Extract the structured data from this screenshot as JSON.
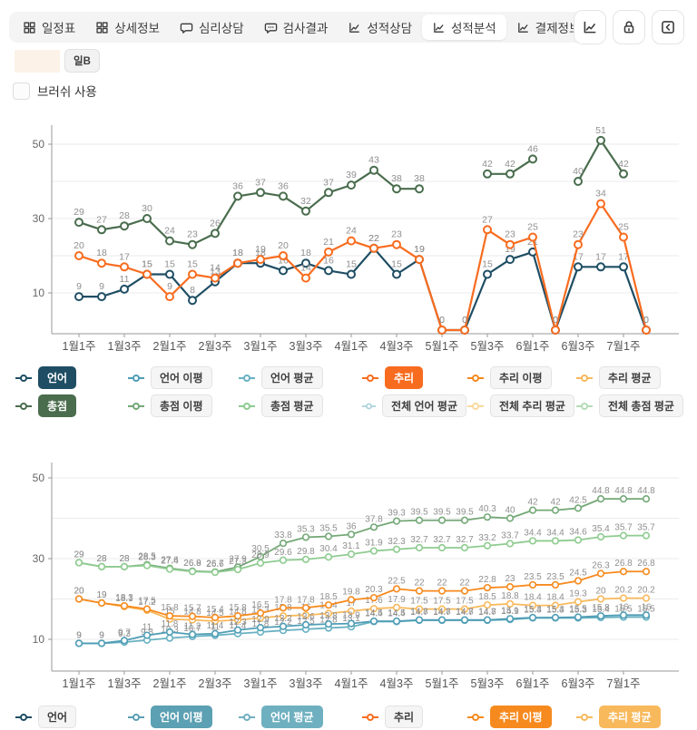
{
  "tabbar": {
    "tabs": [
      {
        "key": "schedule",
        "label": "일정표",
        "icon": "grid",
        "active": false
      },
      {
        "key": "details",
        "label": "상세정보",
        "icon": "grid",
        "active": false
      },
      {
        "key": "psych-counseling",
        "label": "심리상담",
        "icon": "chat",
        "active": false
      },
      {
        "key": "test-results",
        "label": "검사결과",
        "icon": "chat-dots",
        "active": false
      },
      {
        "key": "grade-counseling",
        "label": "성적상담",
        "icon": "chart",
        "active": false
      },
      {
        "key": "grade-analysis",
        "label": "성적분석",
        "icon": "chart",
        "active": true
      },
      {
        "key": "payment",
        "label": "결제정보",
        "icon": "chart",
        "active": false
      }
    ]
  },
  "toolbar": {
    "buttons": [
      {
        "key": "chart-view",
        "icon": "chart"
      },
      {
        "key": "lock",
        "icon": "lock"
      },
      {
        "key": "collapse",
        "icon": "prev"
      }
    ]
  },
  "student_row": {
    "badge_label": "일B"
  },
  "brush": {
    "label": "브러쉬 사용",
    "checked": false
  },
  "colors": {
    "navy": "#1f4e64",
    "orange": "#f86c1f",
    "green": "#4a6d4e",
    "teal": "#4f9db5",
    "teal_light": "#68b1c2",
    "orange2": "#f68a1e",
    "orange_light": "#f8b95c",
    "green2": "#74a877",
    "green_light": "#8ecb90",
    "label_gray": "#909090",
    "axis_gray": "#999999",
    "grid_gray": "#ebebeb",
    "tick_text": "#555555"
  },
  "x_tick_labels": [
    "1월1주",
    "1월3주",
    "2월1주",
    "2월3주",
    "3월1주",
    "3월3주",
    "4월1주",
    "4월3주",
    "5월1주",
    "5월3주",
    "6월1주",
    "6월3주",
    "7월1주"
  ],
  "chart_data": [
    {
      "type": "line",
      "title": "",
      "xlabel": "",
      "ylabel": "",
      "ylim": [
        0,
        55
      ],
      "yticks": [
        10,
        30,
        50
      ],
      "grid": true,
      "n_points": 26,
      "tick_every": 2,
      "series": [
        {
          "name": "총점",
          "color": "#4a6d4e",
          "values": [
            29,
            27,
            28,
            30,
            24,
            23,
            26,
            36,
            37,
            36,
            32,
            37,
            39,
            43,
            38,
            38,
            null,
            null,
            42,
            42,
            46,
            null,
            40,
            51,
            42,
            null
          ]
        },
        {
          "name": "언어",
          "color": "#1f4e64",
          "values": [
            9,
            9,
            11,
            15,
            15,
            8,
            13,
            18,
            18,
            16,
            18,
            16,
            15,
            22,
            15,
            19,
            0,
            0,
            15,
            19,
            21,
            0,
            17,
            17,
            17,
            0
          ]
        },
        {
          "name": "추리",
          "color": "#f86c1f",
          "values": [
            20,
            18,
            17,
            15,
            9,
            15,
            14,
            18,
            19,
            20,
            14,
            21,
            24,
            22,
            23,
            19,
            0,
            0,
            27,
            23,
            25,
            0,
            23,
            34,
            25,
            0
          ]
        }
      ]
    },
    {
      "type": "line",
      "title": "",
      "xlabel": "",
      "ylabel": "",
      "ylim": [
        0,
        55
      ],
      "yticks": [
        10,
        30,
        50
      ],
      "grid": true,
      "n_points": 26,
      "tick_every": 2,
      "series": [
        {
          "name": "총점 이평",
          "color": "#74a877",
          "values": [
            29,
            28,
            28,
            28.5,
            27.6,
            26.9,
            26.7,
            27.9,
            30.5,
            33.8,
            35.3,
            35.5,
            36,
            37.8,
            39.3,
            39.5,
            39.5,
            39.5,
            40.3,
            40,
            42,
            42,
            42.5,
            44.8,
            44.8,
            44.8
          ]
        },
        {
          "name": "총점 평균",
          "color": "#8ecb90",
          "values": [
            29,
            28,
            28,
            28.3,
            27.4,
            26.8,
            26.6,
            27.3,
            28.9,
            29.6,
            29.8,
            30.4,
            31.1,
            31.9,
            32.3,
            32.7,
            32.7,
            32.7,
            33.2,
            33.7,
            34.4,
            34.4,
            34.6,
            35.4,
            35.7,
            35.7
          ]
        },
        {
          "name": "추리 평균",
          "color": "#f8b95c",
          "values": [
            20,
            19,
            18.1,
            17.2,
            15,
            14.8,
            14.5,
            14.8,
            15.3,
            15.8,
            16,
            16.4,
            17,
            17.6,
            17.9,
            17.5,
            17.5,
            17.5,
            18.5,
            18.8,
            18.4,
            18.4,
            19.3,
            20,
            20.2,
            20.2
          ]
        },
        {
          "name": "추리 이평",
          "color": "#f68a1e",
          "values": [
            20,
            19,
            18.3,
            17.5,
            15.8,
            15.7,
            15.4,
            15.8,
            16.5,
            17.8,
            17.8,
            18.5,
            19.8,
            20.3,
            22.5,
            22,
            22,
            22,
            22.8,
            23,
            23.5,
            23.5,
            24.5,
            26.3,
            26.8,
            26.8
          ]
        },
        {
          "name": "언어 평균",
          "color": "#68b1c2",
          "values": [
            9,
            9,
            9.3,
            9.8,
            10.3,
            10.7,
            11,
            11.4,
            11.8,
            12.2,
            12.5,
            12.8,
            13.1,
            14.4,
            14.4,
            14.7,
            14.7,
            14.7,
            14.7,
            14.9,
            15.3,
            15.3,
            15.3,
            15.4,
            15.5,
            15.5
          ]
        },
        {
          "name": "언어 이평",
          "color": "#4f9db5",
          "values": [
            9,
            9,
            9.7,
            11,
            11.8,
            11.2,
            11.4,
            12.3,
            12.9,
            13.2,
            13.6,
            13.8,
            13.9,
            14.5,
            14.5,
            14.8,
            14.8,
            14.8,
            14.8,
            15.1,
            15.4,
            15.4,
            15.5,
            15.8,
            16,
            16
          ]
        }
      ]
    }
  ],
  "legends": {
    "chart1_rows": [
      [
        {
          "label": "언어",
          "style": "solid",
          "color": "#1f4e64"
        },
        {
          "label": "언어 이평",
          "style": "light",
          "color": "#4f9db5"
        },
        {
          "label": "언어 평균",
          "style": "light",
          "color": "#68b1c2"
        },
        {
          "label": "추리",
          "style": "solid",
          "color": "#f86c1f"
        },
        {
          "label": "추리 이평",
          "style": "light",
          "color": "#f68a1e"
        },
        {
          "label": "추리 평균",
          "style": "light",
          "color": "#f8b95c"
        }
      ],
      [
        {
          "label": "총점",
          "style": "solid",
          "color": "#4a6d4e"
        },
        {
          "label": "총점 이평",
          "style": "light",
          "color": "#74a877"
        },
        {
          "label": "총점 평균",
          "style": "light",
          "color": "#8ecb90"
        },
        {
          "label": "전체 언어 평균",
          "style": "light",
          "color": "#a9d0dc"
        },
        {
          "label": "전체 추리 평균",
          "style": "light",
          "color": "#f9d9a0"
        },
        {
          "label": "전체 총점 평균",
          "style": "light",
          "color": "#b5dcb6"
        }
      ]
    ],
    "chart2_row": [
      {
        "label": "언어",
        "style": "light",
        "color": "#1f4e64"
      },
      {
        "label": "언어 이평",
        "style": "solid",
        "color": "#5ba0b3"
      },
      {
        "label": "언어 평균",
        "style": "solid",
        "color": "#6fb0c0"
      },
      {
        "label": "추리",
        "style": "light",
        "color": "#f86c1f"
      },
      {
        "label": "추리 이평",
        "style": "solid",
        "color": "#f68a1e"
      },
      {
        "label": "추리 평균",
        "style": "solid",
        "color": "#f8b95c"
      }
    ]
  }
}
